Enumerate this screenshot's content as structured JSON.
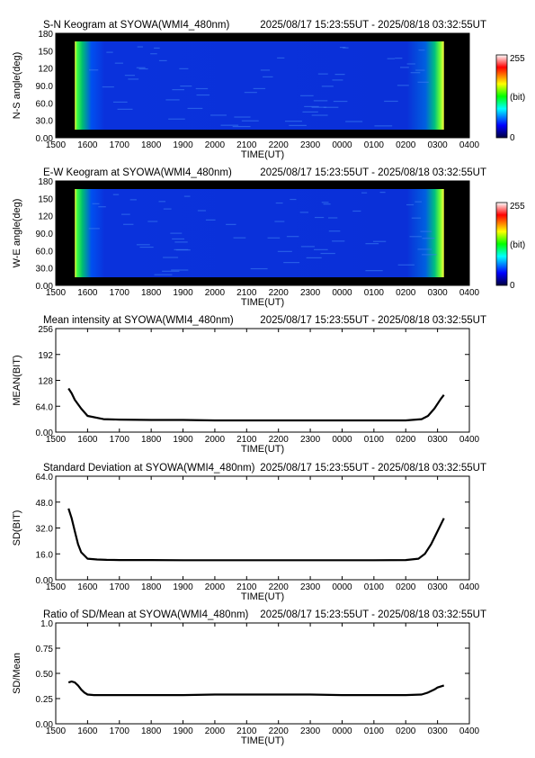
{
  "chart_data": [
    {
      "type": "heatmap",
      "title": "S-N Keogram at SYOWA(WMI4_480nm)",
      "time_range": "2025/08/17 15:23:55UT - 2025/08/18 03:32:55UT",
      "xlabel": "TIME(UT)",
      "ylabel": "N-S angle(deg)",
      "x_ticks": [
        "1500",
        "1600",
        "1700",
        "1800",
        "1900",
        "2000",
        "2100",
        "2200",
        "2300",
        "0000",
        "0100",
        "0200",
        "0300",
        "0400"
      ],
      "y_ticks": [
        "0.00",
        "30.0",
        "60.0",
        "90.0",
        "120",
        "150",
        "180"
      ],
      "ylim": [
        0,
        180
      ],
      "colorbar": {
        "max_label": "255",
        "unit_label": "(bit)",
        "min_label": "0"
      }
    },
    {
      "type": "heatmap",
      "title": "E-W Keogram at SYOWA(WMI4_480nm)",
      "time_range": "2025/08/17 15:23:55UT - 2025/08/18 03:32:55UT",
      "xlabel": "TIME(UT)",
      "ylabel": "W-E angle(deg)",
      "x_ticks": [
        "1500",
        "1600",
        "1700",
        "1800",
        "1900",
        "2000",
        "2100",
        "2200",
        "2300",
        "0000",
        "0100",
        "0200",
        "0300",
        "0400"
      ],
      "y_ticks": [
        "0.00",
        "30.0",
        "60.0",
        "90.0",
        "120",
        "150",
        "180"
      ],
      "ylim": [
        0,
        180
      ],
      "colorbar": {
        "max_label": "255",
        "unit_label": "(bit)",
        "min_label": "0"
      }
    },
    {
      "type": "line",
      "title": "Mean intensity at SYOWA(WMI4_480nm)",
      "time_range": "2025/08/17 15:23:55UT - 2025/08/18 03:32:55UT",
      "xlabel": "TIME(UT)",
      "ylabel": "MEAN(BIT)",
      "x_ticks": [
        "1500",
        "1600",
        "1700",
        "1800",
        "1900",
        "2000",
        "2100",
        "2200",
        "2300",
        "0000",
        "0100",
        "0200",
        "0300",
        "0400"
      ],
      "y_ticks": [
        "0.00",
        "64.0",
        "128",
        "192",
        "256"
      ],
      "ylim": [
        0,
        256
      ],
      "x": [
        0.4,
        0.5,
        0.6,
        0.8,
        1.0,
        1.5,
        2,
        3,
        4,
        5,
        6,
        7,
        8,
        9,
        10,
        11,
        11.5,
        11.7,
        11.9,
        12.1,
        12.2
      ],
      "y": [
        108,
        96,
        80,
        58,
        40,
        32,
        31,
        30,
        30,
        29,
        29,
        29,
        29,
        29,
        29,
        29,
        32,
        40,
        58,
        82,
        92
      ]
    },
    {
      "type": "line",
      "title": "Standard Deviation at SYOWA(WMI4_480nm)",
      "time_range": "2025/08/17 15:23:55UT - 2025/08/18 03:32:55UT",
      "xlabel": "TIME(UT)",
      "ylabel": "SD(BIT)",
      "x_ticks": [
        "1500",
        "1600",
        "1700",
        "1800",
        "1900",
        "2000",
        "2100",
        "2200",
        "2300",
        "0000",
        "0100",
        "0200",
        "0300",
        "0400"
      ],
      "y_ticks": [
        "0.00",
        "16.0",
        "32.0",
        "48.0",
        "64.0"
      ],
      "ylim": [
        0,
        64
      ],
      "x": [
        0.4,
        0.5,
        0.6,
        0.7,
        0.8,
        1.0,
        1.3,
        1.6,
        2,
        3,
        4,
        5,
        6,
        7,
        8,
        9,
        10,
        11,
        11.4,
        11.6,
        11.8,
        12.0,
        12.2
      ],
      "y": [
        44,
        38,
        30,
        22,
        17,
        13,
        12.5,
        12.3,
        12.2,
        12.2,
        12.1,
        12.1,
        12.1,
        12.1,
        12.1,
        12.1,
        12.1,
        12.2,
        13,
        16,
        22,
        30,
        38
      ]
    },
    {
      "type": "line",
      "title": "Ratio of SD/Mean at SYOWA(WMI4_480nm)",
      "time_range": "2025/08/17 15:23:55UT - 2025/08/18 03:32:55UT",
      "xlabel": "TIME(UT)",
      "ylabel": "SD/Mean",
      "x_ticks": [
        "1500",
        "1600",
        "1700",
        "1800",
        "1900",
        "2000",
        "2100",
        "2200",
        "2300",
        "0000",
        "0100",
        "0200",
        "0300",
        "0400"
      ],
      "y_ticks": [
        "0.00",
        "0.25",
        "0.50",
        "0.75",
        "1.0"
      ],
      "ylim": [
        0,
        1.0
      ],
      "x": [
        0.4,
        0.5,
        0.6,
        0.7,
        0.8,
        0.9,
        1.0,
        1.2,
        1.5,
        2,
        3,
        4,
        5,
        6,
        7,
        8,
        9,
        10,
        11,
        11.5,
        11.7,
        11.9,
        12.0,
        12.2
      ],
      "y": [
        0.41,
        0.42,
        0.41,
        0.38,
        0.34,
        0.31,
        0.29,
        0.285,
        0.285,
        0.285,
        0.285,
        0.285,
        0.29,
        0.29,
        0.29,
        0.29,
        0.285,
        0.285,
        0.285,
        0.29,
        0.31,
        0.34,
        0.36,
        0.38
      ]
    }
  ]
}
